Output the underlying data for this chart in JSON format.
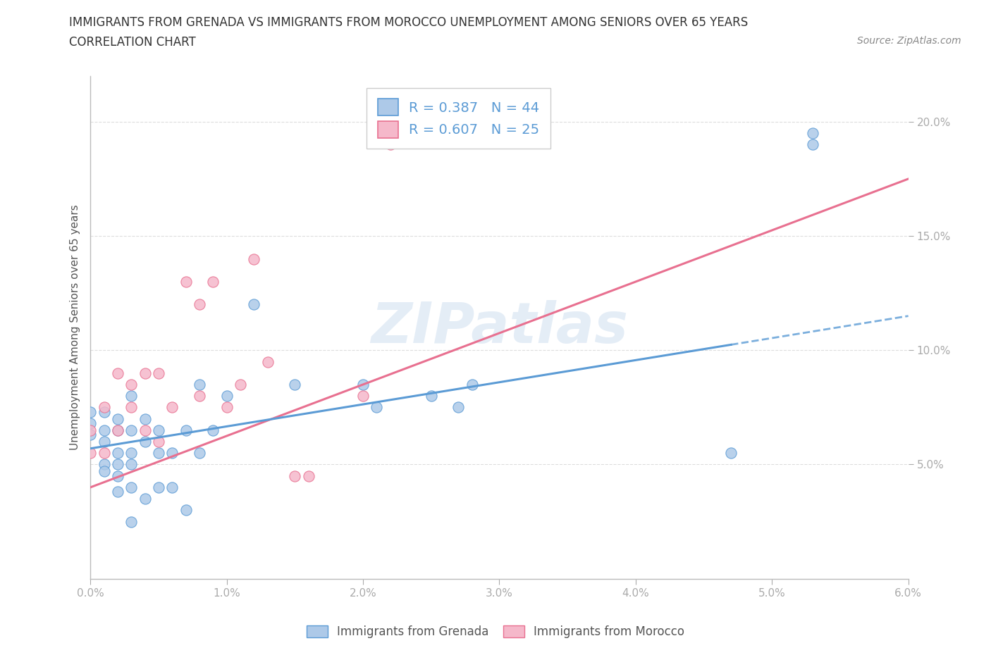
{
  "title_line1": "IMMIGRANTS FROM GRENADA VS IMMIGRANTS FROM MOROCCO UNEMPLOYMENT AMONG SENIORS OVER 65 YEARS",
  "title_line2": "CORRELATION CHART",
  "source": "Source: ZipAtlas.com",
  "ylabel": "Unemployment Among Seniors over 65 years",
  "watermark": "ZIPatlas",
  "xlim": [
    0.0,
    0.06
  ],
  "ylim": [
    0.0,
    0.22
  ],
  "xticks": [
    0.0,
    0.01,
    0.02,
    0.03,
    0.04,
    0.05,
    0.06
  ],
  "xticklabels": [
    "0.0%",
    "1.0%",
    "2.0%",
    "3.0%",
    "4.0%",
    "5.0%",
    "6.0%"
  ],
  "yticks": [
    0.05,
    0.1,
    0.15,
    0.2
  ],
  "yticklabels": [
    "5.0%",
    "10.0%",
    "15.0%",
    "20.0%"
  ],
  "grenada_R": 0.387,
  "grenada_N": 44,
  "morocco_R": 0.607,
  "morocco_N": 25,
  "grenada_color": "#adc9e8",
  "morocco_color": "#f5b8ca",
  "grenada_line_color": "#5b9bd5",
  "morocco_line_color": "#e87090",
  "grenada_scatter_x": [
    0.0,
    0.0,
    0.0,
    0.001,
    0.001,
    0.001,
    0.001,
    0.001,
    0.002,
    0.002,
    0.002,
    0.002,
    0.002,
    0.002,
    0.003,
    0.003,
    0.003,
    0.003,
    0.003,
    0.003,
    0.004,
    0.004,
    0.004,
    0.005,
    0.005,
    0.005,
    0.006,
    0.006,
    0.007,
    0.007,
    0.008,
    0.008,
    0.009,
    0.01,
    0.012,
    0.015,
    0.02,
    0.021,
    0.025,
    0.027,
    0.028,
    0.047,
    0.053,
    0.053
  ],
  "grenada_scatter_y": [
    0.068,
    0.073,
    0.063,
    0.073,
    0.065,
    0.06,
    0.05,
    0.047,
    0.07,
    0.065,
    0.055,
    0.05,
    0.045,
    0.038,
    0.08,
    0.065,
    0.055,
    0.05,
    0.04,
    0.025,
    0.07,
    0.06,
    0.035,
    0.065,
    0.055,
    0.04,
    0.055,
    0.04,
    0.065,
    0.03,
    0.085,
    0.055,
    0.065,
    0.08,
    0.12,
    0.085,
    0.085,
    0.075,
    0.08,
    0.075,
    0.085,
    0.055,
    0.195,
    0.19
  ],
  "morocco_scatter_x": [
    0.0,
    0.0,
    0.001,
    0.001,
    0.002,
    0.002,
    0.003,
    0.003,
    0.004,
    0.004,
    0.005,
    0.005,
    0.006,
    0.007,
    0.008,
    0.008,
    0.009,
    0.01,
    0.011,
    0.012,
    0.013,
    0.015,
    0.016,
    0.02,
    0.022
  ],
  "morocco_scatter_y": [
    0.065,
    0.055,
    0.075,
    0.055,
    0.09,
    0.065,
    0.085,
    0.075,
    0.09,
    0.065,
    0.09,
    0.06,
    0.075,
    0.13,
    0.08,
    0.12,
    0.13,
    0.075,
    0.085,
    0.14,
    0.095,
    0.045,
    0.045,
    0.08,
    0.19
  ],
  "grenada_trend_x": [
    0.0,
    0.06
  ],
  "grenada_trend_y": [
    0.057,
    0.115
  ],
  "grenada_trend_solid_end": 0.047,
  "morocco_trend_x": [
    0.0,
    0.06
  ],
  "morocco_trend_y": [
    0.04,
    0.175
  ],
  "title_fontsize": 12,
  "subtitle_fontsize": 12,
  "axis_label_fontsize": 11,
  "tick_fontsize": 11,
  "legend_fontsize": 14,
  "source_fontsize": 10
}
